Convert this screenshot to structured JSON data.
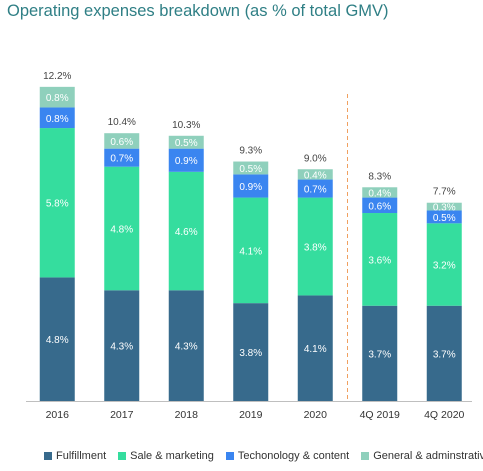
{
  "title": "Operating expenses breakdown (as % of total GMV)",
  "chart_data": {
    "type": "bar",
    "stacked": true,
    "title": "Operating expenses breakdown (as % of total GMV)",
    "categories": [
      "2016",
      "2017",
      "2018",
      "2019",
      "2020",
      "4Q 2019",
      "4Q 2020"
    ],
    "series": [
      {
        "name": "Fulfillment",
        "color": "#376a8c",
        "values": [
          4.8,
          4.3,
          4.3,
          3.8,
          4.1,
          3.7,
          3.7
        ],
        "labels": [
          "4.8%",
          "4.3%",
          "4.3%",
          "3.8%",
          "4.1%",
          "3.7%",
          "3.7%"
        ]
      },
      {
        "name": "Sale & marketing",
        "color": "#35dd9e",
        "values": [
          5.8,
          4.8,
          4.6,
          4.1,
          3.8,
          3.6,
          3.2
        ],
        "labels": [
          "5.8%",
          "4.8%",
          "4.6%",
          "4.1%",
          "3.8%",
          "3.6%",
          "3.2%"
        ]
      },
      {
        "name": "Techonology & content",
        "color": "#3a85f0",
        "values": [
          0.8,
          0.7,
          0.9,
          0.9,
          0.7,
          0.6,
          0.5
        ],
        "labels": [
          "0.8%",
          "0.7%",
          "0.9%",
          "0.9%",
          "0.7%",
          "0.6%",
          "0.5%"
        ]
      },
      {
        "name": "General & adminstrative",
        "color": "#8fd0bc",
        "values": [
          0.8,
          0.6,
          0.5,
          0.5,
          0.4,
          0.4,
          0.3
        ],
        "labels": [
          "0.8%",
          "0.6%",
          "0.5%",
          "0.5%",
          "0.4%",
          "0.4%",
          "0.3%"
        ]
      }
    ],
    "totals": [
      12.2,
      10.4,
      10.3,
      9.3,
      9.0,
      8.3,
      7.7
    ],
    "total_labels": [
      "12.2%",
      "10.4%",
      "10.3%",
      "9.3%",
      "9.0%",
      "8.3%",
      "7.7%"
    ],
    "divider_after_category": "2020",
    "divider_color": "#f0a060",
    "legend": "bottom",
    "grid": false
  }
}
